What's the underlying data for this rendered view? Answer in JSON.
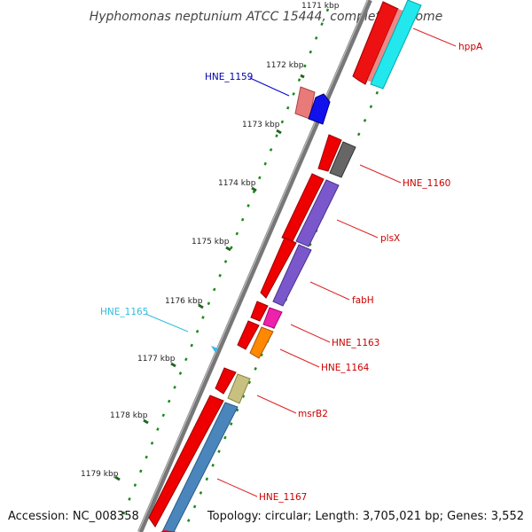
{
  "title": "Hyphomonas neptunium ATCC 15444, complete genome",
  "accession": "Accession: NC_008358",
  "summary": "Topology: circular; Length: 3,705,021 bp; Genes: 3,552",
  "ticks": [
    "1171 kbp",
    "1172 kbp",
    "1173 kbp",
    "1174 kbp",
    "1175 kbp",
    "1176 kbp",
    "1177 kbp",
    "1178 kbp",
    "1179 kbp"
  ],
  "genes": [
    {
      "name": "hppA",
      "color": "#cc0000"
    },
    {
      "name": "HNE_1159",
      "color": "#0000aa"
    },
    {
      "name": "HNE_1160",
      "color": "#cc0000"
    },
    {
      "name": "plsX",
      "color": "#cc0000"
    },
    {
      "name": "fabH",
      "color": "#cc0000"
    },
    {
      "name": "HNE_1165",
      "color": "#33bbdd"
    },
    {
      "name": "HNE_1163",
      "color": "#cc0000"
    },
    {
      "name": "HNE_1164",
      "color": "#cc0000"
    },
    {
      "name": "msrB2",
      "color": "#cc0000"
    },
    {
      "name": "HNE_1167",
      "color": "#cc0000"
    }
  ],
  "colors": {
    "backbone": "#777777",
    "cds_arrow": "#ee0000",
    "tick": "#226622"
  }
}
